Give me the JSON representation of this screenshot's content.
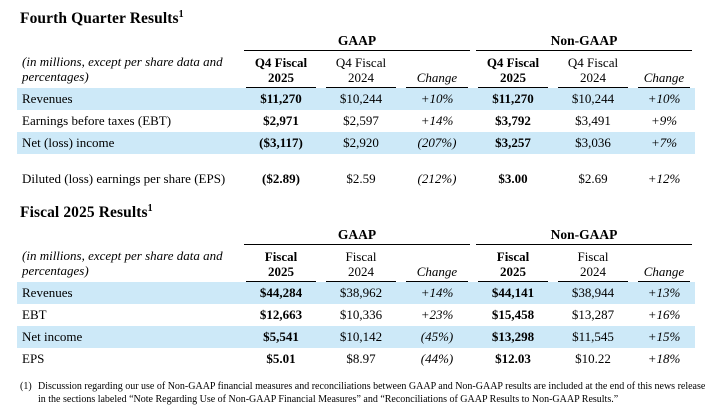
{
  "colors": {
    "row_highlight": "#cde9f8",
    "text": "#000000",
    "rule": "#000000"
  },
  "q4": {
    "title": "Fourth Quarter Results",
    "footnote_ref": "1",
    "note": "(in millions, except per share data and percentages)",
    "gaap_label": "GAAP",
    "non_gaap_label": "Non-GAAP",
    "col_headers": {
      "cur_l1": "Q4 Fiscal",
      "cur_l2": "2025",
      "prior_l1": "Q4 Fiscal",
      "prior_l2": "2024",
      "change": "Change"
    },
    "rows": [
      {
        "label": "Revenues",
        "values": [
          "$11,270",
          "$10,244",
          "+10%",
          "$11,270",
          "$10,244",
          "+10%"
        ]
      },
      {
        "label": "Earnings before taxes (EBT)",
        "values": [
          "$2,971",
          "$2,597",
          "+14%",
          "$3,792",
          "$3,491",
          "+9%"
        ]
      },
      {
        "label": "Net (loss) income",
        "values": [
          "($3,117)",
          "$2,920",
          "(207%)",
          "$3,257",
          "$3,036",
          "+7%"
        ]
      },
      {
        "label": "Diluted (loss) earnings per share (EPS)",
        "values": [
          "($2.89)",
          "$2.59",
          "(212%)",
          "$3.00",
          "$2.69",
          "+12%"
        ]
      }
    ]
  },
  "fy": {
    "title": "Fiscal 2025 Results",
    "footnote_ref": "1",
    "note": "(in millions, except per share data and percentages)",
    "gaap_label": "GAAP",
    "non_gaap_label": "Non-GAAP",
    "col_headers": {
      "cur_l1": "Fiscal",
      "cur_l2": "2025",
      "prior_l1": "Fiscal",
      "prior_l2": "2024",
      "change": "Change"
    },
    "rows": [
      {
        "label": "Revenues",
        "values": [
          "$44,284",
          "$38,962",
          "+14%",
          "$44,141",
          "$38,944",
          "+13%"
        ]
      },
      {
        "label": "EBT",
        "values": [
          "$12,663",
          "$10,336",
          "+23%",
          "$15,458",
          "$13,287",
          "+16%"
        ]
      },
      {
        "label": "Net income",
        "values": [
          "$5,541",
          "$10,142",
          "(45%)",
          "$13,298",
          "$11,545",
          "+15%"
        ]
      },
      {
        "label": "EPS",
        "values": [
          "$5.01",
          "$8.97",
          "(44%)",
          "$12.03",
          "$10.22",
          "+18%"
        ]
      }
    ]
  },
  "footnote": {
    "marker": "(1)",
    "text": "Discussion regarding our use of Non-GAAP financial measures and reconciliations between GAAP and Non-GAAP results are included at the end of this news release in the sections labeled “Note Regarding Use of Non-GAAP Financial Measures” and “Reconciliations of GAAP Results to Non-GAAP Results.”"
  }
}
